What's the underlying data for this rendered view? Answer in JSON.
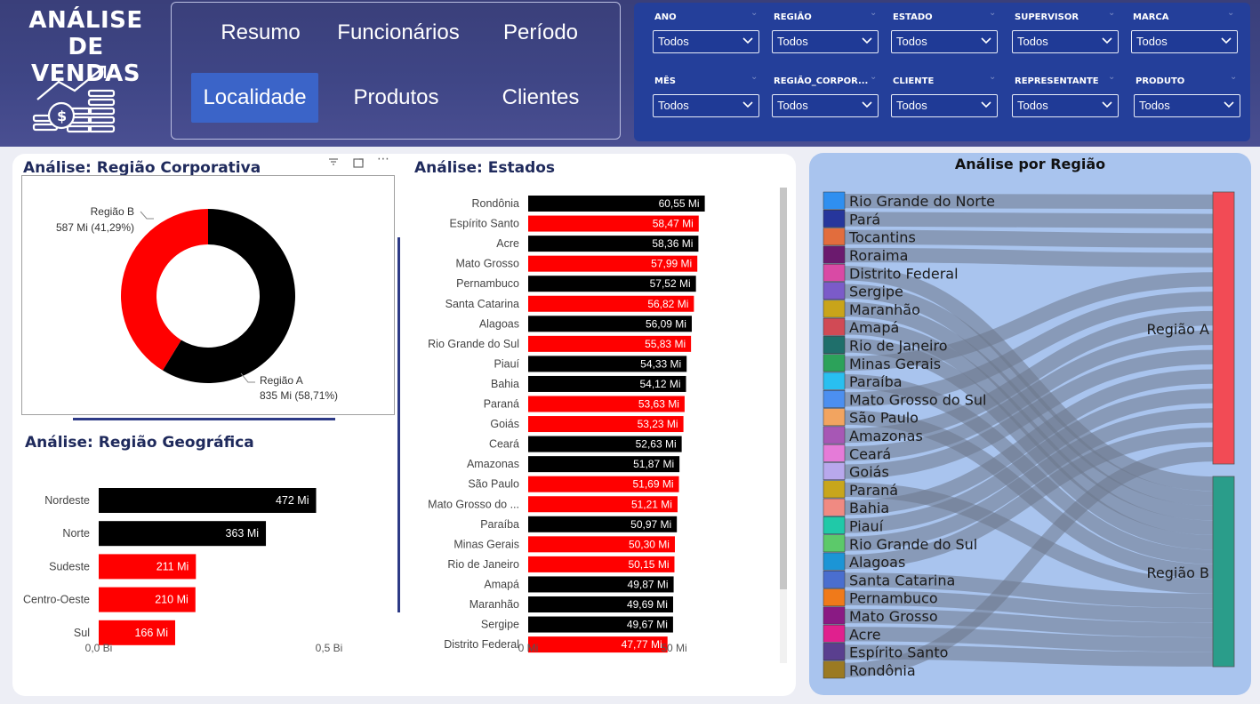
{
  "header": {
    "title_line1": "ANÁLISE",
    "title_line2": "DE VENDAS",
    "logo_icon": "sales-growth-icon"
  },
  "nav": {
    "items": [
      {
        "label": "Resumo",
        "active": false
      },
      {
        "label": "Funcionários",
        "active": false
      },
      {
        "label": "Período",
        "active": false
      },
      {
        "label": "Localidade",
        "active": true
      },
      {
        "label": "Produtos",
        "active": false
      },
      {
        "label": "Clientes",
        "active": false
      }
    ]
  },
  "filters": [
    {
      "label": "ANO",
      "value": "Todos"
    },
    {
      "label": "REGIÃO",
      "value": "Todos"
    },
    {
      "label": "ESTADO",
      "value": "Todos"
    },
    {
      "label": "SUPERVISOR",
      "value": "Todos"
    },
    {
      "label": "MARCA",
      "value": "Todos"
    },
    {
      "label": "MÊS",
      "value": "Todos"
    },
    {
      "label": "REGIÃO_CORPOR...",
      "value": "Todos"
    },
    {
      "label": "CLIENTE",
      "value": "Todos"
    },
    {
      "label": "REPRESENTANTE",
      "value": "Todos"
    },
    {
      "label": "PRODUTO",
      "value": "Todos"
    }
  ],
  "colors": {
    "black": "#000000",
    "red": "#ff0000",
    "navy": "#1f2a5c",
    "regionA": "#f24b55",
    "regionB": "#2a9d8a"
  },
  "chart_data": [
    {
      "type": "pie",
      "title": "Análise: Região Corporativa",
      "categories": [
        "Região A",
        "Região B"
      ],
      "values": [
        835,
        587
      ],
      "data_labels": [
        "835 Mi (58,71%)",
        "587 Mi (41,29%)"
      ],
      "colors": [
        "#000000",
        "#ff0000"
      ]
    },
    {
      "type": "bar",
      "orientation": "horizontal",
      "title": "Análise: Região Geográfica",
      "categories": [
        "Nordeste",
        "Norte",
        "Sudeste",
        "Centro-Oeste",
        "Sul"
      ],
      "values": [
        472,
        363,
        211,
        210,
        166
      ],
      "data_labels": [
        "472 Mi",
        "363 Mi",
        "211 Mi",
        "210 Mi",
        "166 Mi"
      ],
      "colors": [
        "#000000",
        "#000000",
        "#ff0000",
        "#ff0000",
        "#ff0000"
      ],
      "xlim": [
        0,
        500
      ],
      "x_tick_labels": [
        "0,0 Bi",
        "0,5 Bi"
      ]
    },
    {
      "type": "bar",
      "orientation": "horizontal",
      "title": "Análise: Estados",
      "categories": [
        "Rondônia",
        "Espírito Santo",
        "Acre",
        "Mato Grosso",
        "Pernambuco",
        "Santa Catarina",
        "Alagoas",
        "Rio Grande do Sul",
        "Piauí",
        "Bahia",
        "Paraná",
        "Goiás",
        "Ceará",
        "Amazonas",
        "São Paulo",
        "Mato Grosso do ...",
        "Paraíba",
        "Minas Gerais",
        "Rio de Janeiro",
        "Amapá",
        "Maranhão",
        "Sergipe",
        "Distrito Federal"
      ],
      "values": [
        60.55,
        58.47,
        58.36,
        57.99,
        57.52,
        56.82,
        56.09,
        55.83,
        54.33,
        54.12,
        53.63,
        53.23,
        52.63,
        51.87,
        51.69,
        51.21,
        50.97,
        50.3,
        50.15,
        49.87,
        49.69,
        49.67,
        47.77
      ],
      "data_labels": [
        "60,55 Mi",
        "58,47 Mi",
        "58,36 Mi",
        "57,99 Mi",
        "57,52 Mi",
        "56,82 Mi",
        "56,09 Mi",
        "55,83 Mi",
        "54,33 Mi",
        "54,12 Mi",
        "53,63 Mi",
        "53,23 Mi",
        "52,63 Mi",
        "51,87 Mi",
        "51,69 Mi",
        "51,21 Mi",
        "50,97 Mi",
        "50,30 Mi",
        "50,15 Mi",
        "49,87 Mi",
        "49,69 Mi",
        "49,67 Mi",
        "47,77 Mi"
      ],
      "colors": [
        "#000000",
        "#ff0000",
        "#000000",
        "#ff0000",
        "#000000",
        "#ff0000",
        "#000000",
        "#ff0000",
        "#000000",
        "#000000",
        "#ff0000",
        "#ff0000",
        "#000000",
        "#000000",
        "#ff0000",
        "#ff0000",
        "#000000",
        "#ff0000",
        "#ff0000",
        "#000000",
        "#000000",
        "#000000",
        "#ff0000"
      ],
      "xlim": [
        0,
        62
      ],
      "x_tick_labels": [
        "0 Mi",
        "50 Mi"
      ],
      "x_tick_values": [
        0,
        50
      ]
    },
    {
      "type": "sankey",
      "title": "Análise por Região",
      "sources": [
        "Rio Grande do Norte",
        "Pará",
        "Tocantins",
        "Roraima",
        "Distrito Federal",
        "Sergipe",
        "Maranhão",
        "Amapá",
        "Rio de Janeiro",
        "Minas Gerais",
        "Paraíba",
        "Mato Grosso do Sul",
        "São Paulo",
        "Amazonas",
        "Ceará",
        "Goiás",
        "Paraná",
        "Bahia",
        "Piauí",
        "Rio Grande do Sul",
        "Alagoas",
        "Santa Catarina",
        "Pernambuco",
        "Mato Grosso",
        "Acre",
        "Espírito Santo",
        "Rondônia"
      ],
      "source_colors": [
        "#2f8ff0",
        "#26369c",
        "#e26d3d",
        "#6b1a6e",
        "#d94aa5",
        "#7b5bc9",
        "#c9a41a",
        "#d14a55",
        "#1f6f6b",
        "#2ca25a",
        "#29bff0",
        "#4c8ff0",
        "#f2a460",
        "#a757b5",
        "#e57bd8",
        "#b8a8ec",
        "#c8a61c",
        "#f08a82",
        "#20c9a8",
        "#5cc96a",
        "#1c95d6",
        "#4a6ecf",
        "#f07a1a",
        "#8a1a84",
        "#e0208e",
        "#5a3f8f",
        "#9b7a22"
      ],
      "targets": [
        "Região A",
        "Região B"
      ],
      "target_colors": [
        "#f24b55",
        "#2a9d8a"
      ],
      "flows": [
        [
          0,
          0
        ],
        [
          1,
          0
        ],
        [
          2,
          0
        ],
        [
          3,
          0
        ],
        [
          4,
          1
        ],
        [
          5,
          1
        ],
        [
          6,
          1
        ],
        [
          7,
          1
        ],
        [
          8,
          1
        ],
        [
          9,
          0
        ],
        [
          10,
          1
        ],
        [
          11,
          0
        ],
        [
          12,
          1
        ],
        [
          13,
          0
        ],
        [
          14,
          0
        ],
        [
          15,
          0
        ],
        [
          16,
          1
        ],
        [
          17,
          0
        ],
        [
          18,
          0
        ],
        [
          19,
          0
        ],
        [
          20,
          0
        ],
        [
          21,
          1
        ],
        [
          22,
          1
        ],
        [
          23,
          1
        ],
        [
          24,
          1
        ],
        [
          25,
          1
        ],
        [
          26,
          0
        ]
      ]
    }
  ]
}
